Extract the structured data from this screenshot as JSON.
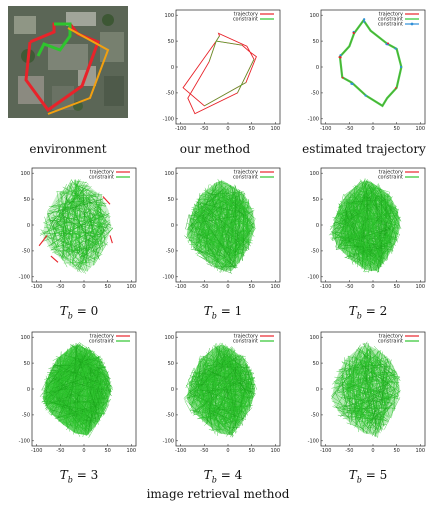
{
  "captions": {
    "environment": "environment",
    "our_method": "our method",
    "estimated_trajectory": "estimated trajectory",
    "image_retrieval": "image retrieval method",
    "tb_var": "T",
    "tb_sub": "b",
    "tb_values": [
      "= 0",
      "= 1",
      "= 2",
      "= 3",
      "= 4",
      "= 5"
    ]
  },
  "colors": {
    "trajectory": "#e8232a",
    "constraint": "#2ec42e",
    "constraint_dark": "#1aa51a",
    "estimated_blue": "#2f8fd8"
  },
  "chart_data": [
    {
      "panel": "our method",
      "type": "line",
      "xlim": [
        -110,
        110
      ],
      "ylim": [
        -110,
        110
      ],
      "xticks": [
        "-100",
        "-50",
        "0",
        "50",
        "100"
      ],
      "yticks": [
        "100",
        "50",
        "0",
        "-50",
        "-100"
      ],
      "legend": [
        "trajectory",
        "constraint"
      ],
      "legend_position": "top-right",
      "series": [
        {
          "name": "trajectory",
          "x": [
            -25,
            30,
            45,
            60,
            38,
            -50,
            -95,
            -60,
            -25,
            -18,
            -20,
            40,
            55,
            20,
            -70,
            -85,
            -40,
            -25
          ],
          "y": [
            50,
            42,
            30,
            20,
            -30,
            -75,
            -40,
            5,
            50,
            60,
            65,
            40,
            15,
            -50,
            -90,
            -60,
            10,
            50
          ]
        }
      ]
    },
    {
      "panel": "estimated trajectory",
      "type": "line",
      "xlim": [
        -110,
        110
      ],
      "ylim": [
        -110,
        110
      ],
      "xticks": [
        "-100",
        "-50",
        "0",
        "50",
        "100"
      ],
      "yticks": [
        "100",
        "50",
        "0",
        "-50",
        "-100"
      ],
      "legend": [
        "trajectory",
        "constraint",
        "constraint"
      ],
      "legend_position": "top-right",
      "series": [
        {
          "name": "trajectory",
          "x": [
            -40,
            -20,
            -5,
            30,
            50,
            60,
            50,
            30,
            20,
            -15,
            -45,
            -65,
            -70,
            -50,
            -40
          ],
          "y": [
            65,
            90,
            70,
            45,
            35,
            0,
            -40,
            -60,
            -75,
            -55,
            -30,
            -20,
            20,
            40,
            65
          ]
        }
      ]
    },
    {
      "panel": "T_b = 0",
      "type": "line",
      "xlim": [
        -110,
        110
      ],
      "ylim": [
        -110,
        110
      ],
      "xticks": [
        "-100",
        "-50",
        "0",
        "50",
        "100"
      ],
      "yticks": [
        "100",
        "50",
        "0",
        "-50",
        "-100"
      ],
      "legend": [
        "trajectory",
        "constraint"
      ],
      "legend_position": "top-right"
    },
    {
      "panel": "T_b = 1",
      "type": "line",
      "xlim": [
        -110,
        110
      ],
      "ylim": [
        -110,
        110
      ],
      "xticks": [
        "-100",
        "-50",
        "0",
        "50",
        "100"
      ],
      "yticks": [
        "100",
        "50",
        "0",
        "-50",
        "-100"
      ],
      "legend": [
        "trajectory",
        "constraint"
      ],
      "legend_position": "top-right"
    },
    {
      "panel": "T_b = 2",
      "type": "line",
      "xlim": [
        -110,
        110
      ],
      "ylim": [
        -110,
        110
      ],
      "xticks": [
        "-100",
        "-50",
        "0",
        "50",
        "100"
      ],
      "yticks": [
        "100",
        "50",
        "0",
        "-50",
        "-100"
      ],
      "legend": [
        "trajectory",
        "constraint"
      ],
      "legend_position": "top-right"
    },
    {
      "panel": "T_b = 3",
      "type": "line",
      "xlim": [
        -110,
        110
      ],
      "ylim": [
        -110,
        110
      ],
      "xticks": [
        "-100",
        "-50",
        "0",
        "50",
        "100"
      ],
      "yticks": [
        "100",
        "50",
        "0",
        "-50",
        "-100"
      ],
      "legend": [
        "trajectory",
        "constraint"
      ],
      "legend_position": "top-right"
    },
    {
      "panel": "T_b = 4",
      "type": "line",
      "xlim": [
        -110,
        110
      ],
      "ylim": [
        -110,
        110
      ],
      "xticks": [
        "-100",
        "-50",
        "0",
        "50",
        "100"
      ],
      "yticks": [
        "100",
        "50",
        "0",
        "-50",
        "-100"
      ],
      "legend": [
        "trajectory",
        "constraint"
      ],
      "legend_position": "top-right"
    },
    {
      "panel": "T_b = 5",
      "type": "line",
      "xlim": [
        -110,
        110
      ],
      "ylim": [
        -110,
        110
      ],
      "xticks": [
        "-100",
        "-50",
        "0",
        "50",
        "100"
      ],
      "yticks": [
        "100",
        "50",
        "0",
        "-50",
        "-100"
      ],
      "legend": [
        "trajectory",
        "constraint"
      ],
      "legend_position": "top-right"
    }
  ]
}
